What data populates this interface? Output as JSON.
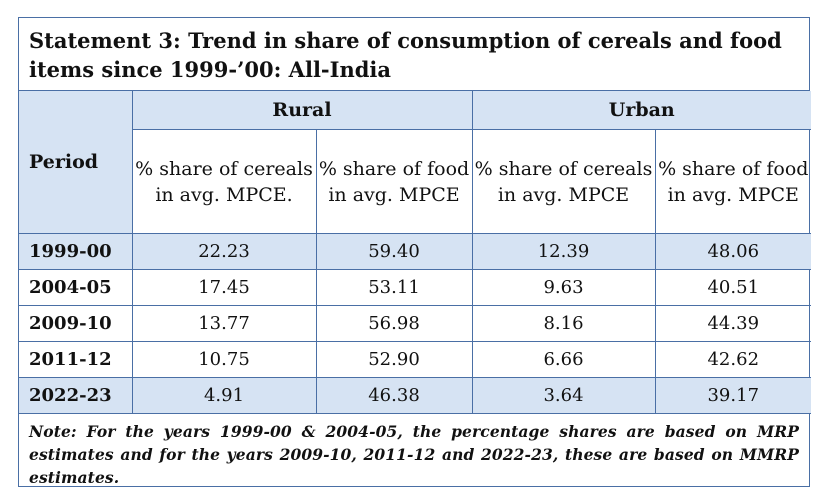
{
  "title": "Statement 3: Trend in share of consumption of cereals and food items since 1999-’00: All-India",
  "table": {
    "period_header": "Period",
    "groups": [
      {
        "label": "Rural"
      },
      {
        "label": "Urban"
      }
    ],
    "subheaders": [
      "% share of cereals in avg. MPCE.",
      "% share of food in avg. MPCE",
      "% share of cereals in avg. MPCE",
      "% share of food in avg. MPCE"
    ],
    "rows": [
      {
        "period": "1999-00",
        "values": [
          "22.23",
          "59.40",
          "12.39",
          "48.06"
        ]
      },
      {
        "period": "2004-05",
        "values": [
          "17.45",
          "53.11",
          "9.63",
          "40.51"
        ]
      },
      {
        "period": "2009-10",
        "values": [
          "13.77",
          "56.98",
          "8.16",
          "44.39"
        ]
      },
      {
        "period": "2011-12",
        "values": [
          "10.75",
          "52.90",
          "6.66",
          "42.62"
        ]
      },
      {
        "period": "2022-23",
        "values": [
          "4.91",
          "46.38",
          "3.64",
          "39.17"
        ]
      }
    ]
  },
  "note": "Note: For the years 1999-00 & 2004-05, the percentage shares are based on MRP estimates and for the years 2009-10, 2011-12 and 2022-23, these are based on MMRP estimates.",
  "colors": {
    "border": "#4a6fa5",
    "header_fill": "#d6e3f3"
  }
}
